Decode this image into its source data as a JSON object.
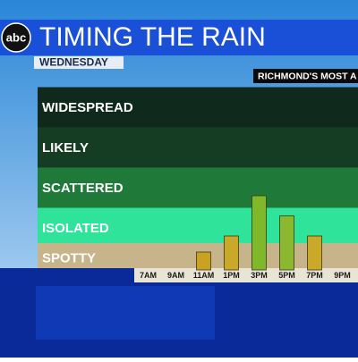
{
  "logo": "abc",
  "chart_data": {
    "type": "bar",
    "title": "TIMING THE RAIN",
    "subtitle": "WEDNESDAY",
    "annotation": "RICHMOND'S MOST A",
    "categories": [
      "7AM",
      "9AM",
      "11AM",
      "1PM",
      "3PM",
      "5PM",
      "7PM",
      "9PM"
    ],
    "values": [
      null,
      null,
      0.4,
      0.8,
      1.8,
      1.3,
      0.8,
      null
    ],
    "colors": [
      null,
      null,
      "#c9a224",
      "#c9a82a",
      "#7fb82a",
      "#8bb830",
      "#c9a82a",
      null
    ],
    "ylim": [
      0,
      4.5
    ],
    "yticks": [
      {
        "value": 0.25,
        "label": "SPOTTY"
      },
      {
        "value": 1,
        "label": "ISOLATED"
      },
      {
        "value": 2,
        "label": "SCATTERED"
      },
      {
        "value": 3,
        "label": "LIKELY"
      },
      {
        "value": 4,
        "label": "WIDESPREAD"
      }
    ],
    "level_colors": [
      "#c8b48a",
      "#2fe39a",
      "#1f7a3a",
      "#153d24",
      "#0f2a1c"
    ]
  }
}
